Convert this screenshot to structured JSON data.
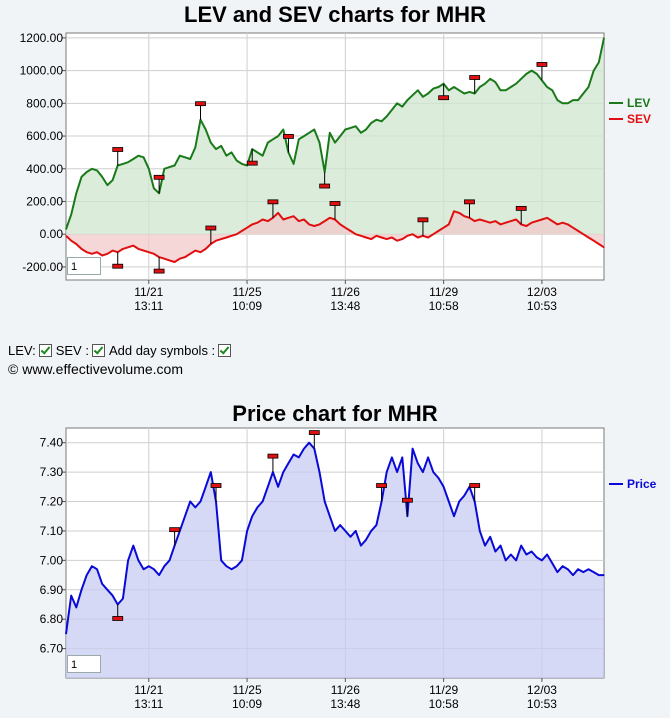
{
  "chart_data": [
    {
      "type": "area",
      "title": "LEV and SEV charts for MHR",
      "xlabel": "",
      "ylabel": "",
      "ylim": [
        -280,
        1230
      ],
      "yticks": [
        "1200.00",
        "1000.00",
        "800.00",
        "600.00",
        "400.00",
        "200.00",
        "0.00",
        "-200.00"
      ],
      "ytick_values": [
        1200,
        1000,
        800,
        600,
        400,
        200,
        0,
        -200
      ],
      "xticks": [
        {
          "date": "11/21",
          "time": "13:11",
          "i": 16
        },
        {
          "date": "11/25",
          "time": "10:09",
          "i": 35
        },
        {
          "date": "11/26",
          "time": "13:48",
          "i": 54
        },
        {
          "date": "11/29",
          "time": "10:58",
          "i": 73
        },
        {
          "date": "12/03",
          "time": "10:53",
          "i": 92
        }
      ],
      "n_points": 105,
      "legend_position": "right",
      "grid": true,
      "series": [
        {
          "name": "LEV",
          "color": "#1a7a1a",
          "fill": "#cfe6cf",
          "values": [
            30,
            120,
            250,
            350,
            380,
            400,
            390,
            350,
            300,
            330,
            420,
            430,
            440,
            460,
            480,
            470,
            400,
            280,
            250,
            400,
            410,
            420,
            480,
            470,
            460,
            530,
            700,
            640,
            560,
            520,
            540,
            480,
            500,
            450,
            430,
            420,
            520,
            500,
            480,
            560,
            580,
            600,
            640,
            500,
            430,
            580,
            600,
            620,
            640,
            560,
            380,
            620,
            560,
            600,
            640,
            650,
            660,
            620,
            640,
            680,
            700,
            690,
            720,
            760,
            800,
            780,
            820,
            850,
            880,
            840,
            860,
            890,
            900,
            920,
            880,
            900,
            880,
            860,
            870,
            860,
            900,
            920,
            950,
            930,
            880,
            880,
            900,
            920,
            950,
            980,
            1000,
            980,
            940,
            900,
            880,
            820,
            800,
            800,
            820,
            820,
            860,
            900,
            1000,
            1050,
            1200
          ]
        },
        {
          "name": "SEV",
          "color": "#e01010",
          "fill": "#f2caca",
          "values": [
            -10,
            -40,
            -60,
            -90,
            -110,
            -120,
            -110,
            -130,
            -120,
            -100,
            -110,
            -90,
            -80,
            -70,
            -90,
            -100,
            -110,
            -120,
            -140,
            -150,
            -160,
            -170,
            -150,
            -140,
            -120,
            -100,
            -110,
            -90,
            -60,
            -40,
            -30,
            -20,
            -10,
            0,
            20,
            40,
            60,
            70,
            90,
            80,
            100,
            130,
            90,
            100,
            110,
            80,
            90,
            60,
            50,
            60,
            80,
            100,
            90,
            60,
            40,
            20,
            0,
            -10,
            -20,
            -30,
            -10,
            -20,
            -30,
            -20,
            -40,
            -30,
            -10,
            0,
            -20,
            -10,
            -20,
            0,
            20,
            40,
            60,
            140,
            130,
            110,
            100,
            80,
            90,
            80,
            70,
            80,
            60,
            70,
            80,
            90,
            60,
            50,
            70,
            80,
            90,
            100,
            80,
            60,
            70,
            60,
            40,
            20,
            0,
            -20,
            -40,
            -60,
            -80
          ]
        }
      ],
      "markers": [
        {
          "series": "LEV",
          "i": 10,
          "dir": "up"
        },
        {
          "series": "LEV",
          "i": 18,
          "dir": "up"
        },
        {
          "series": "LEV",
          "i": 26,
          "dir": "up"
        },
        {
          "series": "LEV",
          "i": 36,
          "dir": "down"
        },
        {
          "series": "LEV",
          "i": 43,
          "dir": "up"
        },
        {
          "series": "LEV",
          "i": 50,
          "dir": "down"
        },
        {
          "series": "LEV",
          "i": 73,
          "dir": "down"
        },
        {
          "series": "LEV",
          "i": 79,
          "dir": "up"
        },
        {
          "series": "LEV",
          "i": 92,
          "dir": "up"
        },
        {
          "series": "SEV",
          "i": 10,
          "dir": "down"
        },
        {
          "series": "SEV",
          "i": 18,
          "dir": "down"
        },
        {
          "series": "SEV",
          "i": 28,
          "dir": "up"
        },
        {
          "series": "SEV",
          "i": 40,
          "dir": "up"
        },
        {
          "series": "SEV",
          "i": 52,
          "dir": "up"
        },
        {
          "series": "SEV",
          "i": 69,
          "dir": "up"
        },
        {
          "series": "SEV",
          "i": 78,
          "dir": "up"
        },
        {
          "series": "SEV",
          "i": 88,
          "dir": "up"
        }
      ],
      "zoom_value": "1"
    },
    {
      "type": "area",
      "title": "Price chart for MHR",
      "xlabel": "",
      "ylabel": "",
      "ylim": [
        6.6,
        7.45
      ],
      "yticks": [
        "7.40",
        "7.30",
        "7.20",
        "7.10",
        "7.00",
        "6.90",
        "6.80",
        "6.70"
      ],
      "ytick_values": [
        7.4,
        7.3,
        7.2,
        7.1,
        7.0,
        6.9,
        6.8,
        6.7
      ],
      "xticks": [
        {
          "date": "11/21",
          "time": "13:11",
          "i": 16
        },
        {
          "date": "11/25",
          "time": "10:09",
          "i": 35
        },
        {
          "date": "11/26",
          "time": "13:48",
          "i": 54
        },
        {
          "date": "11/29",
          "time": "10:58",
          "i": 73
        },
        {
          "date": "12/03",
          "time": "10:53",
          "i": 92
        }
      ],
      "n_points": 105,
      "legend_position": "right",
      "grid": true,
      "series": [
        {
          "name": "Price",
          "color": "#0a0ad8",
          "fill": "#c8ccf2",
          "values": [
            6.75,
            6.88,
            6.84,
            6.9,
            6.95,
            6.98,
            6.97,
            6.92,
            6.9,
            6.88,
            6.85,
            6.87,
            7.0,
            7.05,
            7.0,
            6.97,
            6.98,
            6.97,
            6.95,
            6.98,
            7.0,
            7.05,
            7.1,
            7.15,
            7.2,
            7.18,
            7.2,
            7.25,
            7.3,
            7.2,
            7.0,
            6.98,
            6.97,
            6.98,
            7.0,
            7.1,
            7.15,
            7.18,
            7.2,
            7.25,
            7.3,
            7.25,
            7.3,
            7.33,
            7.36,
            7.35,
            7.38,
            7.4,
            7.38,
            7.3,
            7.2,
            7.15,
            7.1,
            7.12,
            7.1,
            7.08,
            7.1,
            7.05,
            7.07,
            7.1,
            7.12,
            7.2,
            7.3,
            7.35,
            7.3,
            7.35,
            7.15,
            7.38,
            7.33,
            7.3,
            7.35,
            7.3,
            7.28,
            7.25,
            7.2,
            7.15,
            7.2,
            7.22,
            7.25,
            7.2,
            7.1,
            7.05,
            7.08,
            7.03,
            7.05,
            7.0,
            7.02,
            7.0,
            7.05,
            7.02,
            7.03,
            7.01,
            7.0,
            7.02,
            6.99,
            6.96,
            6.98,
            6.97,
            6.95,
            6.97,
            6.96,
            6.97,
            6.96,
            6.95,
            6.95
          ]
        }
      ],
      "markers": [
        {
          "series": "Price",
          "i": 10,
          "dir": "down"
        },
        {
          "series": "Price",
          "i": 21,
          "dir": "up"
        },
        {
          "series": "Price",
          "i": 29,
          "dir": "up"
        },
        {
          "series": "Price",
          "i": 40,
          "dir": "up"
        },
        {
          "series": "Price",
          "i": 48,
          "dir": "up"
        },
        {
          "series": "Price",
          "i": 61,
          "dir": "up"
        },
        {
          "series": "Price",
          "i": 66,
          "dir": "up"
        },
        {
          "series": "Price",
          "i": 79,
          "dir": "up"
        }
      ],
      "zoom_value": "1"
    }
  ],
  "controls": {
    "lev_label": "LEV:",
    "sev_label": "SEV :",
    "day_symbols_label": "Add day symbols :",
    "copyright": "© www.effectivevolume.com"
  }
}
